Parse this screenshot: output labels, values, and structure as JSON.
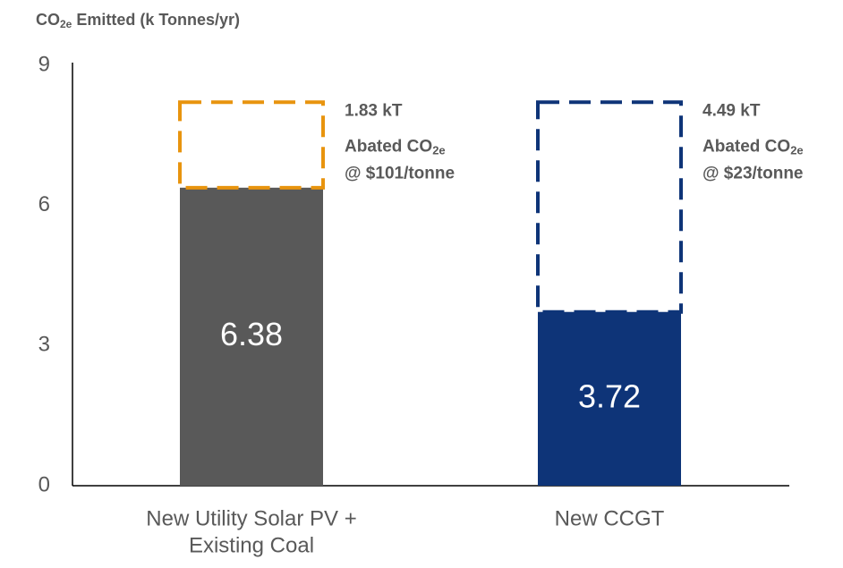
{
  "chart_data": {
    "type": "stacked_bar",
    "ylabel_parts": [
      "CO",
      "2e",
      " Emitted (k Tonnes/yr)"
    ],
    "categories": [
      [
        "New Utility Solar PV +",
        "Existing Coal"
      ],
      [
        "New CCGT"
      ]
    ],
    "series": [
      {
        "colors": [
          "#595959",
          "#0e3478"
        ],
        "values": [
          6.38,
          3.72
        ],
        "style": "solid"
      },
      {
        "colors": [
          "#e8940e",
          "#0e3478"
        ],
        "values": [
          1.83,
          4.49
        ],
        "style": "dashed",
        "value_labels": [
          "1.83 kT",
          "4.49 kT"
        ]
      }
    ],
    "annotations": [
      {
        "abated": [
          "Abated CO",
          "2e"
        ],
        "price": "@ $101/tonne"
      },
      {
        "abated": [
          "Abated CO",
          "2e"
        ],
        "price": "@ $23/tonne"
      }
    ],
    "ylim": [
      0,
      9
    ],
    "yticks": [
      0,
      3,
      6,
      9
    ],
    "grid": false
  }
}
